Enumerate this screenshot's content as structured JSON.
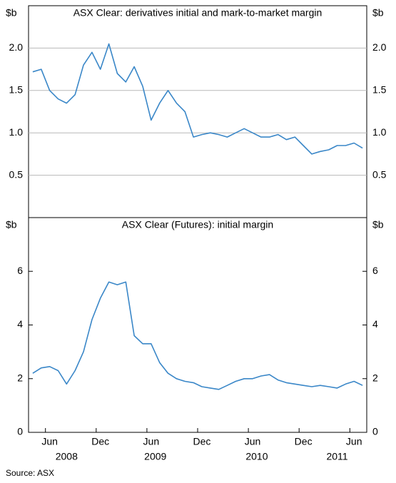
{
  "source": "Source: ASX",
  "chart_data": [
    {
      "type": "line",
      "title": "ASX Clear: derivatives initial and mark-to-market margin",
      "unit": "$b",
      "x": [
        "2008-04",
        "2008-05",
        "2008-06",
        "2008-07",
        "2008-08",
        "2008-09",
        "2008-10",
        "2008-11",
        "2008-12",
        "2009-01",
        "2009-02",
        "2009-03",
        "2009-04",
        "2009-05",
        "2009-06",
        "2009-07",
        "2009-08",
        "2009-09",
        "2009-10",
        "2009-11",
        "2009-12",
        "2010-01",
        "2010-02",
        "2010-03",
        "2010-04",
        "2010-05",
        "2010-06",
        "2010-07",
        "2010-08",
        "2010-09",
        "2010-10",
        "2010-11",
        "2010-12",
        "2011-01",
        "2011-02",
        "2011-03",
        "2011-04",
        "2011-05",
        "2011-06",
        "2011-07"
      ],
      "series": [
        {
          "color": "#3a87c8",
          "values": [
            1.72,
            1.75,
            1.5,
            1.4,
            1.35,
            1.45,
            1.8,
            1.95,
            1.75,
            2.05,
            1.7,
            1.6,
            1.78,
            1.55,
            1.15,
            1.35,
            1.5,
            1.35,
            1.25,
            0.95,
            0.98,
            1.0,
            0.98,
            0.95,
            1.0,
            1.05,
            1.0,
            0.95,
            0.95,
            0.98,
            0.92,
            0.95,
            0.85,
            0.75,
            0.78,
            0.8,
            0.85,
            0.85,
            0.88,
            0.82
          ]
        }
      ],
      "xlim": [
        "2008-04",
        "2011-07"
      ],
      "ylim": [
        0,
        2.5
      ],
      "yticks": [
        0.5,
        {
          "value": 1,
          "label": "1.0"
        },
        1.5,
        {
          "value": 2,
          "label": "2.0"
        }
      ],
      "grid": true
    },
    {
      "type": "line",
      "title": "ASX Clear (Futures): initial margin",
      "unit": "$b",
      "x": [
        "2008-04",
        "2008-05",
        "2008-06",
        "2008-07",
        "2008-08",
        "2008-09",
        "2008-10",
        "2008-11",
        "2008-12",
        "2009-01",
        "2009-02",
        "2009-03",
        "2009-04",
        "2009-05",
        "2009-06",
        "2009-07",
        "2009-08",
        "2009-09",
        "2009-10",
        "2009-11",
        "2009-12",
        "2010-01",
        "2010-02",
        "2010-03",
        "2010-04",
        "2010-05",
        "2010-06",
        "2010-07",
        "2010-08",
        "2010-09",
        "2010-10",
        "2010-11",
        "2010-12",
        "2011-01",
        "2011-02",
        "2011-03",
        "2011-04",
        "2011-05",
        "2011-06",
        "2011-07"
      ],
      "series": [
        {
          "color": "#3a87c8",
          "values": [
            2.2,
            2.4,
            2.45,
            2.3,
            1.8,
            2.3,
            3.0,
            4.2,
            5.0,
            5.6,
            5.5,
            5.6,
            3.6,
            3.3,
            3.3,
            2.6,
            2.2,
            2.0,
            1.9,
            1.85,
            1.7,
            1.65,
            1.6,
            1.75,
            1.9,
            2.0,
            2.0,
            2.1,
            2.15,
            1.95,
            1.85,
            1.8,
            1.75,
            1.7,
            1.75,
            1.7,
            1.65,
            1.8,
            1.9,
            1.75
          ]
        }
      ],
      "xlim": [
        "2008-04",
        "2011-07"
      ],
      "ylim": [
        0,
        8
      ],
      "yticks": [
        0,
        2,
        4,
        6
      ],
      "xticks": [
        {
          "value": "2008-06",
          "label": "Jun"
        },
        {
          "value": "2008-12",
          "label": "Dec"
        },
        {
          "value": "2009-06",
          "label": "Jun"
        },
        {
          "value": "2009-12",
          "label": "Dec"
        },
        {
          "value": "2010-06",
          "label": "Jun"
        },
        {
          "value": "2010-12",
          "label": "Dec"
        },
        {
          "value": "2011-06",
          "label": "Jun"
        }
      ],
      "years": [
        2008,
        2009,
        2010,
        2011
      ],
      "grid": false
    }
  ]
}
